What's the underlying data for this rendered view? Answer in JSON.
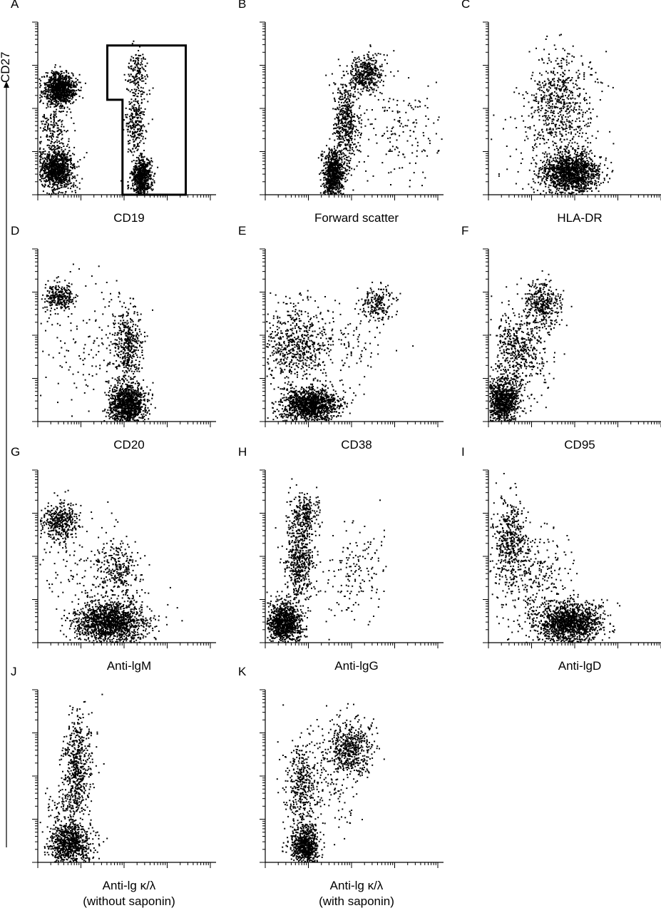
{
  "figure": {
    "y_axis_label": "CD27",
    "marker_color": "#000000"
  },
  "chart_data": [
    {
      "type": "scatter",
      "letter": "A",
      "xlabel": "CD19",
      "xlabel_line2": "",
      "gate": true,
      "clusters": [
        {
          "x": 0.12,
          "y": 0.62,
          "sx": 0.045,
          "sy": 0.045,
          "n": 900
        },
        {
          "x": 0.1,
          "y": 0.15,
          "sx": 0.05,
          "sy": 0.06,
          "n": 1000
        },
        {
          "x": 0.55,
          "y": 0.7,
          "sx": 0.03,
          "sy": 0.07,
          "n": 160
        },
        {
          "x": 0.55,
          "y": 0.42,
          "sx": 0.03,
          "sy": 0.09,
          "n": 260
        },
        {
          "x": 0.58,
          "y": 0.1,
          "sx": 0.03,
          "sy": 0.06,
          "n": 700
        },
        {
          "x": 0.08,
          "y": 0.38,
          "sx": 0.05,
          "sy": 0.1,
          "n": 220
        }
      ]
    },
    {
      "type": "scatter",
      "letter": "B",
      "xlabel": "Forward scatter",
      "xlabel_line2": "",
      "gate": false,
      "clusters": [
        {
          "x": 0.38,
          "y": 0.12,
          "sx": 0.03,
          "sy": 0.07,
          "n": 800
        },
        {
          "x": 0.45,
          "y": 0.42,
          "sx": 0.035,
          "sy": 0.12,
          "n": 500
        },
        {
          "x": 0.56,
          "y": 0.7,
          "sx": 0.05,
          "sy": 0.06,
          "n": 420
        },
        {
          "x": 0.75,
          "y": 0.35,
          "sx": 0.12,
          "sy": 0.15,
          "n": 170
        }
      ]
    },
    {
      "type": "scatter",
      "letter": "C",
      "xlabel": "HLA-DR",
      "xlabel_line2": "",
      "gate": false,
      "clusters": [
        {
          "x": 0.46,
          "y": 0.13,
          "sx": 0.08,
          "sy": 0.06,
          "n": 1400
        },
        {
          "x": 0.4,
          "y": 0.52,
          "sx": 0.09,
          "sy": 0.15,
          "n": 620
        },
        {
          "x": 0.3,
          "y": 0.3,
          "sx": 0.15,
          "sy": 0.2,
          "n": 100
        }
      ]
    },
    {
      "type": "scatter",
      "letter": "D",
      "xlabel": "CD20",
      "xlabel_line2": "",
      "gate": false,
      "clusters": [
        {
          "x": 0.12,
          "y": 0.73,
          "sx": 0.04,
          "sy": 0.04,
          "n": 260
        },
        {
          "x": 0.5,
          "y": 0.1,
          "sx": 0.05,
          "sy": 0.06,
          "n": 1100
        },
        {
          "x": 0.5,
          "y": 0.45,
          "sx": 0.04,
          "sy": 0.1,
          "n": 420
        },
        {
          "x": 0.3,
          "y": 0.5,
          "sx": 0.15,
          "sy": 0.18,
          "n": 160
        }
      ]
    },
    {
      "type": "scatter",
      "letter": "E",
      "xlabel": "CD38",
      "xlabel_line2": "",
      "gate": false,
      "clusters": [
        {
          "x": 0.25,
          "y": 0.1,
          "sx": 0.08,
          "sy": 0.05,
          "n": 1300
        },
        {
          "x": 0.17,
          "y": 0.45,
          "sx": 0.1,
          "sy": 0.12,
          "n": 650
        },
        {
          "x": 0.62,
          "y": 0.68,
          "sx": 0.05,
          "sy": 0.05,
          "n": 200
        },
        {
          "x": 0.45,
          "y": 0.45,
          "sx": 0.12,
          "sy": 0.15,
          "n": 100
        }
      ]
    },
    {
      "type": "scatter",
      "letter": "F",
      "xlabel": "CD95",
      "xlabel_line2": "",
      "gate": false,
      "clusters": [
        {
          "x": 0.07,
          "y": 0.12,
          "sx": 0.05,
          "sy": 0.07,
          "n": 1000
        },
        {
          "x": 0.15,
          "y": 0.45,
          "sx": 0.06,
          "sy": 0.1,
          "n": 350
        },
        {
          "x": 0.3,
          "y": 0.68,
          "sx": 0.05,
          "sy": 0.07,
          "n": 380
        },
        {
          "x": 0.2,
          "y": 0.35,
          "sx": 0.08,
          "sy": 0.15,
          "n": 150
        }
      ]
    },
    {
      "type": "scatter",
      "letter": "G",
      "xlabel": "Anti-lgM",
      "xlabel_line2": "",
      "gate": false,
      "clusters": [
        {
          "x": 0.12,
          "y": 0.7,
          "sx": 0.05,
          "sy": 0.06,
          "n": 400
        },
        {
          "x": 0.4,
          "y": 0.12,
          "sx": 0.1,
          "sy": 0.06,
          "n": 1500
        },
        {
          "x": 0.45,
          "y": 0.42,
          "sx": 0.06,
          "sy": 0.08,
          "n": 260
        },
        {
          "x": 0.3,
          "y": 0.4,
          "sx": 0.15,
          "sy": 0.15,
          "n": 160
        }
      ]
    },
    {
      "type": "scatter",
      "letter": "H",
      "xlabel": "Anti-lgG",
      "xlabel_line2": "",
      "gate": false,
      "clusters": [
        {
          "x": 0.1,
          "y": 0.12,
          "sx": 0.05,
          "sy": 0.06,
          "n": 950
        },
        {
          "x": 0.19,
          "y": 0.5,
          "sx": 0.04,
          "sy": 0.14,
          "n": 600
        },
        {
          "x": 0.22,
          "y": 0.76,
          "sx": 0.04,
          "sy": 0.05,
          "n": 180
        },
        {
          "x": 0.5,
          "y": 0.4,
          "sx": 0.1,
          "sy": 0.15,
          "n": 160
        }
      ]
    },
    {
      "type": "scatter",
      "letter": "I",
      "xlabel": "Anti-lgD",
      "xlabel_line2": "",
      "gate": false,
      "clusters": [
        {
          "x": 0.45,
          "y": 0.12,
          "sx": 0.09,
          "sy": 0.06,
          "n": 1400
        },
        {
          "x": 0.12,
          "y": 0.6,
          "sx": 0.05,
          "sy": 0.12,
          "n": 450
        },
        {
          "x": 0.28,
          "y": 0.4,
          "sx": 0.1,
          "sy": 0.12,
          "n": 200
        },
        {
          "x": 0.2,
          "y": 0.25,
          "sx": 0.12,
          "sy": 0.15,
          "n": 120
        }
      ]
    },
    {
      "type": "scatter",
      "letter": "J",
      "xlabel": "Anti-lg κ/λ",
      "xlabel_line2": "(without saponin)",
      "gate": false,
      "clusters": [
        {
          "x": 0.18,
          "y": 0.1,
          "sx": 0.06,
          "sy": 0.06,
          "n": 800
        },
        {
          "x": 0.22,
          "y": 0.55,
          "sx": 0.04,
          "sy": 0.15,
          "n": 550
        },
        {
          "x": 0.15,
          "y": 0.3,
          "sx": 0.05,
          "sy": 0.1,
          "n": 150
        }
      ]
    },
    {
      "type": "scatter",
      "letter": "K",
      "xlabel": "Anti-lg κ/λ",
      "xlabel_line2": "(with saponin)",
      "gate": false,
      "clusters": [
        {
          "x": 0.22,
          "y": 0.1,
          "sx": 0.04,
          "sy": 0.06,
          "n": 700
        },
        {
          "x": 0.2,
          "y": 0.45,
          "sx": 0.04,
          "sy": 0.12,
          "n": 350
        },
        {
          "x": 0.48,
          "y": 0.66,
          "sx": 0.06,
          "sy": 0.08,
          "n": 500
        },
        {
          "x": 0.35,
          "y": 0.5,
          "sx": 0.1,
          "sy": 0.15,
          "n": 200
        }
      ]
    }
  ]
}
